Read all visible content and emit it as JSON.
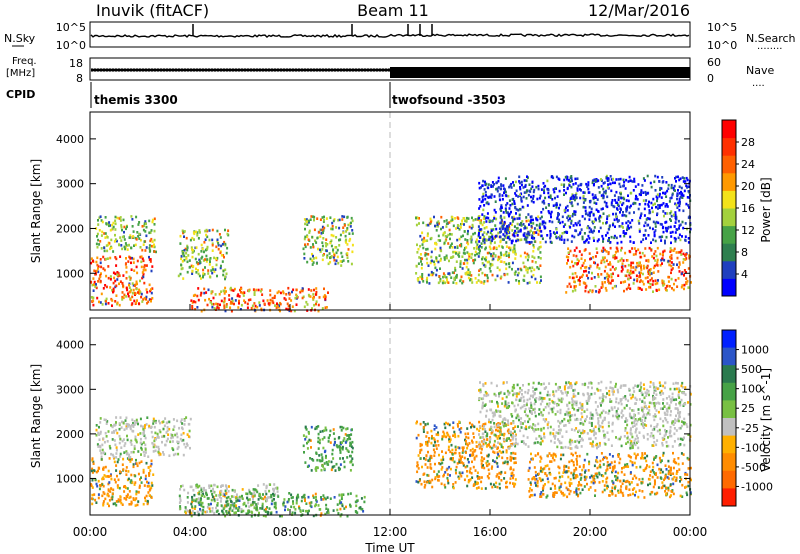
{
  "header": {
    "station": "Inuvik (fitACF)",
    "beam": "Beam 11",
    "date": "12/Mar/2016"
  },
  "panel_labels": {
    "nsky": "N.Sky",
    "nsearch": "N.Search",
    "nsearch_dots": "........",
    "freq_line1": "Freq.",
    "freq_line2": "[MHz]",
    "nave": "Nave",
    "nave_dots": "....",
    "cpid": "CPID"
  },
  "noise_axis": {
    "left_top": "10^5",
    "left_bottom": "10^0",
    "right_top": "10^5",
    "right_bottom": "10^0"
  },
  "freq_axis": {
    "left_top": "18",
    "left_bottom": "8",
    "right_top": "60",
    "right_bottom": "0"
  },
  "cpid_segments": [
    {
      "label": "themis 3300",
      "start_hour": 0,
      "end_hour": 12
    },
    {
      "label": "twofsound -3503",
      "start_hour": 12,
      "end_hour": 24
    }
  ],
  "colors": {
    "power_scale": [
      "#0000ff",
      "#1f3fbf",
      "#2e7f4f",
      "#46a246",
      "#a3d13d",
      "#f3e21a",
      "#ff9900",
      "#ff6000",
      "#ff3000",
      "#ff0000"
    ],
    "velocity_scale": [
      "#0020ff",
      "#2b55c8",
      "#2a7a4e",
      "#46a246",
      "#78c043",
      "#c0c0c0",
      "#ffb000",
      "#ff8c00",
      "#ff6a00",
      "#ff1e00"
    ]
  },
  "chart_data": [
    {
      "type": "heatmap",
      "title": "Power",
      "xlabel": "",
      "ylabel": "Slant Range [km]",
      "colorbar_label": "Power [dB]",
      "colorbar_ticks": [
        "4",
        "8",
        "12",
        "16",
        "20",
        "24",
        "28"
      ],
      "xlim": [
        0,
        24
      ],
      "ylim": [
        180,
        4600
      ],
      "y_ticks": [
        "1000",
        "2000",
        "3000",
        "4000"
      ],
      "grid": false,
      "scatter_regions": [
        {
          "t0": 0.0,
          "t1": 2.5,
          "r0": 300,
          "r1": 1400,
          "level": "high"
        },
        {
          "t0": 0.2,
          "t1": 2.6,
          "r0": 1500,
          "r1": 2300,
          "level": "mid"
        },
        {
          "t0": 4.0,
          "t1": 9.5,
          "r0": 180,
          "r1": 700,
          "level": "high"
        },
        {
          "t0": 3.5,
          "t1": 5.5,
          "r0": 900,
          "r1": 2000,
          "level": "mid"
        },
        {
          "t0": 8.5,
          "t1": 10.5,
          "r0": 1200,
          "r1": 2300,
          "level": "mid"
        },
        {
          "t0": 13.0,
          "t1": 18.0,
          "r0": 800,
          "r1": 2300,
          "level": "mid"
        },
        {
          "t0": 19.0,
          "t1": 24.0,
          "r0": 600,
          "r1": 1600,
          "level": "high"
        },
        {
          "t0": 15.5,
          "t1": 24.0,
          "r0": 1700,
          "r1": 3200,
          "level": "low"
        }
      ]
    },
    {
      "type": "heatmap",
      "title": "Velocity",
      "xlabel": "Time UT",
      "ylabel": "Slant Range [km]",
      "colorbar_label": "Velocity [m s^-1]",
      "colorbar_ticks": [
        "1000",
        "500",
        "100",
        "25",
        "-25",
        "-100",
        "-500",
        "-1000"
      ],
      "xlim": [
        0,
        24
      ],
      "ylim": [
        180,
        4600
      ],
      "x_ticks": [
        "00:00",
        "04:00",
        "08:00",
        "12:00",
        "16:00",
        "20:00",
        "00:00"
      ],
      "y_ticks": [
        "1000",
        "2000",
        "3000",
        "4000"
      ],
      "grid": false,
      "scatter_regions": [
        {
          "t0": 0.0,
          "t1": 2.5,
          "r0": 400,
          "r1": 1500,
          "level": "neg"
        },
        {
          "t0": 0.2,
          "t1": 4.0,
          "r0": 1500,
          "r1": 2400,
          "level": "zero"
        },
        {
          "t0": 3.5,
          "t1": 7.5,
          "r0": 250,
          "r1": 900,
          "level": "zero"
        },
        {
          "t0": 4.0,
          "t1": 11.0,
          "r0": 180,
          "r1": 700,
          "level": "pos"
        },
        {
          "t0": 8.5,
          "t1": 10.5,
          "r0": 1200,
          "r1": 2200,
          "level": "pos"
        },
        {
          "t0": 13.0,
          "t1": 17.0,
          "r0": 800,
          "r1": 2300,
          "level": "neg"
        },
        {
          "t0": 17.5,
          "t1": 24.0,
          "r0": 600,
          "r1": 1600,
          "level": "neg"
        },
        {
          "t0": 15.5,
          "t1": 24.0,
          "r0": 1700,
          "r1": 3200,
          "level": "zero"
        }
      ]
    }
  ]
}
